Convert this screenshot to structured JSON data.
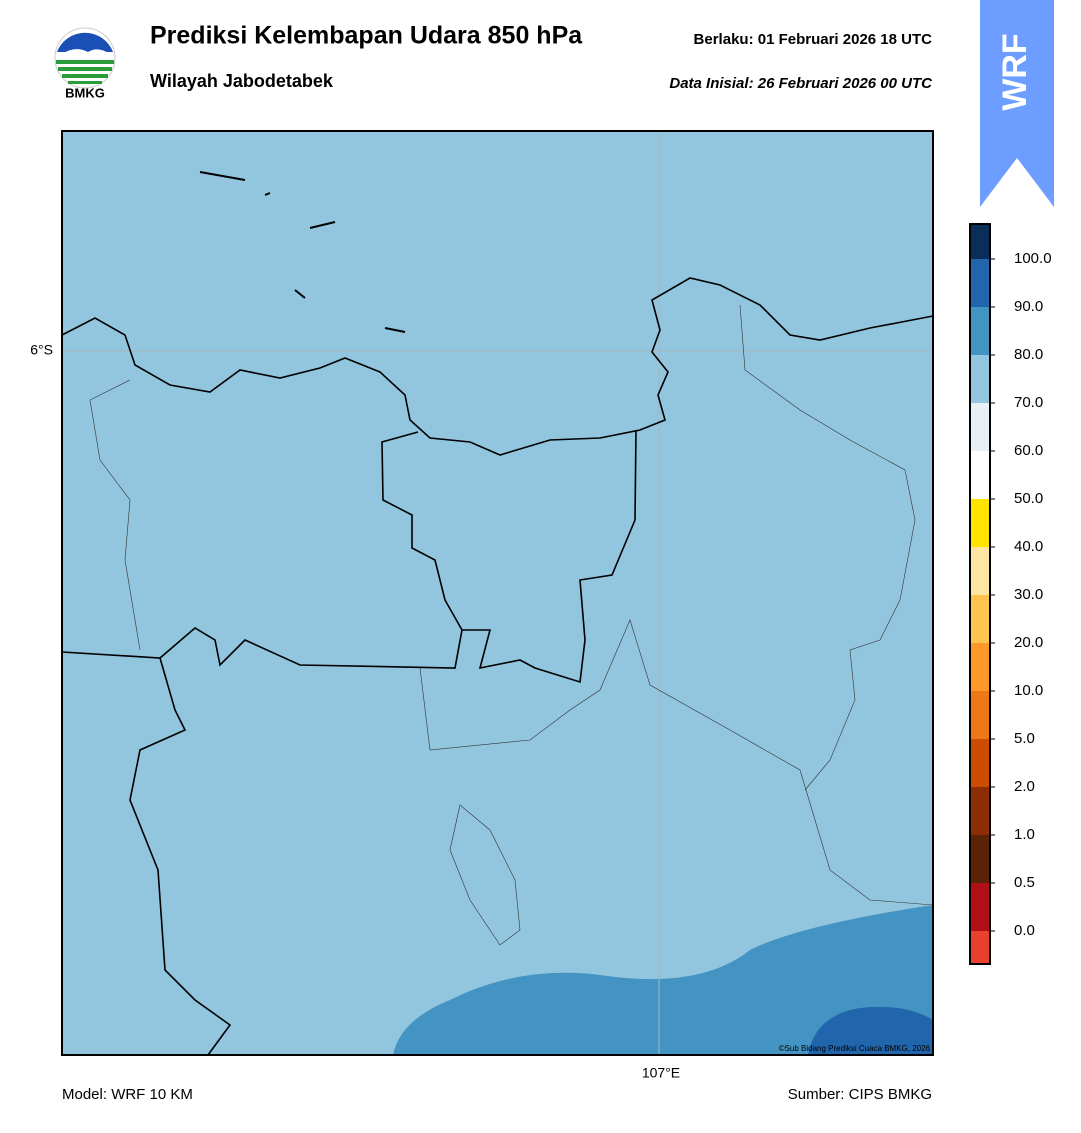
{
  "header": {
    "title": "Prediksi Kelembapan Udara 850 hPa",
    "subtitle": "Wilayah Jabodetabek",
    "valid": "Berlaku:  01 Februari 2026 18 UTC",
    "init": "Data Inisial:  26 Februari 2026 00 UTC",
    "logo_text": "BMKG",
    "badge": "WRF"
  },
  "map": {
    "lat_label": "6°S",
    "lon_label": "107°E",
    "credit": "©Sub Bidang Prediksi Cuaca BMKG, 2026"
  },
  "colorbar": {
    "labels": [
      "0.0",
      "0.5",
      "1.0",
      "2.0",
      "5.0",
      "10.0",
      "20.0",
      "30.0",
      "40.0",
      "50.0",
      "60.0",
      "70.0",
      "80.0",
      "90.0",
      "100.0"
    ],
    "colors": [
      "#e8412e",
      "#b01116",
      "#5a2305",
      "#8c2d04",
      "#cc4c02",
      "#ee7818",
      "#fe9929",
      "#fec44f",
      "#fee6a0",
      "#ffe400",
      "#ffffff",
      "#e8f0f6",
      "#92c5de",
      "#4393c3",
      "#2166ac",
      "#0b2d5a",
      "#2d004b"
    ]
  },
  "footer": {
    "model": "Model: WRF 10 KM",
    "source": "Sumber: CIPS BMKG"
  }
}
